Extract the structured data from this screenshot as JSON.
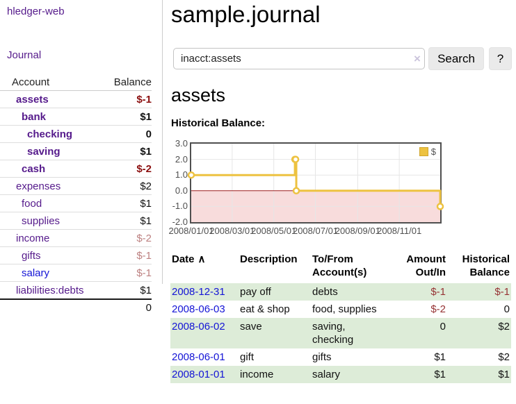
{
  "app": {
    "brand": "hledger-web"
  },
  "nav": {
    "journal": "Journal"
  },
  "colors": {
    "link_purple": "#551A8B",
    "link_blue": "#1414d6",
    "negative_strong": "#8b0f0f",
    "negative_soft": "#bd8181",
    "negative_table": "#963334",
    "row_green": "#ddecd8",
    "chart_line": "#EDC240",
    "chart_negative_fill": "#f8dcdc",
    "chart_zero_line": "#9b1c1c"
  },
  "sidebar": {
    "header": {
      "account": "Account",
      "balance": "Balance"
    },
    "rows": [
      {
        "name": "assets",
        "balance": "$-1",
        "indent": 1,
        "matched": true,
        "link": "visited"
      },
      {
        "name": "bank",
        "balance": "$1",
        "indent": 2,
        "matched": true,
        "link": "visited"
      },
      {
        "name": "checking",
        "balance": "0",
        "indent": 3,
        "matched": true,
        "link": "visited"
      },
      {
        "name": "saving",
        "balance": "$1",
        "indent": 3,
        "matched": true,
        "link": "visited"
      },
      {
        "name": "cash",
        "balance": "$-2",
        "indent": 2,
        "matched": true,
        "link": "visited"
      },
      {
        "name": "expenses",
        "balance": "$2",
        "indent": 1,
        "matched": false,
        "link": "visited"
      },
      {
        "name": "food",
        "balance": "$1",
        "indent": 2,
        "matched": false,
        "link": "visited"
      },
      {
        "name": "supplies",
        "balance": "$1",
        "indent": 2,
        "matched": false,
        "link": "visited"
      },
      {
        "name": "income",
        "balance": "$-2",
        "indent": 1,
        "matched": false,
        "link": "visited"
      },
      {
        "name": "gifts",
        "balance": "$-1",
        "indent": 2,
        "matched": false,
        "link": "visited"
      },
      {
        "name": "salary",
        "balance": "$-1",
        "indent": 2,
        "matched": false,
        "link": "new"
      },
      {
        "name": "liabilities:debts",
        "balance": "$1",
        "indent": 1,
        "matched": false,
        "link": "visited"
      }
    ],
    "total": "0"
  },
  "main": {
    "title": "sample.journal"
  },
  "search": {
    "query": "inacct:assets",
    "clear": "×",
    "search_button": "Search",
    "help_button": "?"
  },
  "account": {
    "heading": "assets",
    "section_label": "Historical Balance:"
  },
  "chart_data": {
    "type": "line",
    "step": true,
    "title": "Historical Balance",
    "series": [
      {
        "name": "$",
        "color": "#EDC240",
        "points": [
          [
            "2008-01-01",
            1
          ],
          [
            "2008-06-01",
            2
          ],
          [
            "2008-06-02",
            2
          ],
          [
            "2008-06-03",
            0
          ],
          [
            "2008-12-31",
            -1
          ]
        ]
      }
    ],
    "x_range": [
      "2008-01-01",
      "2008-12-31"
    ],
    "x_ticks": [
      {
        "label": "2008/01/01",
        "date": "2008-01-01"
      },
      {
        "label": "2008/03/01",
        "date": "2008-03-01"
      },
      {
        "label": "2008/05/01",
        "date": "2008-05-01"
      },
      {
        "label": "2008/07/01",
        "date": "2008-07-01"
      },
      {
        "label": "2008/09/01",
        "date": "2008-09-01"
      },
      {
        "label": "2008/11/01",
        "date": "2008-11-01"
      }
    ],
    "y_ticks": [
      "3.0",
      "2.0",
      "1.0",
      "0.0",
      "-1.0",
      "-2.0"
    ],
    "ylim": [
      -2,
      3
    ],
    "legend": {
      "label": "$",
      "position": "top-right"
    },
    "grid": true
  },
  "register": {
    "columns": [
      {
        "label": "Date",
        "sort": "∧"
      },
      {
        "label": "Description"
      },
      {
        "label": "To/From Account(s)"
      },
      {
        "label": "Amount Out/In",
        "numeric": true
      },
      {
        "label": "Historical Balance",
        "numeric": true
      }
    ],
    "rows": [
      {
        "date": "2008-12-31",
        "description": "pay off",
        "tofrom": "debts",
        "amount": "$-1",
        "balance": "$-1"
      },
      {
        "date": "2008-06-03",
        "description": "eat & shop",
        "tofrom": "food, supplies",
        "amount": "$-2",
        "balance": "0"
      },
      {
        "date": "2008-06-02",
        "description": "save",
        "tofrom": "saving, checking",
        "amount": "0",
        "balance": "$2"
      },
      {
        "date": "2008-06-01",
        "description": "gift",
        "tofrom": "gifts",
        "amount": "$1",
        "balance": "$2"
      },
      {
        "date": "2008-01-01",
        "description": "income",
        "tofrom": "salary",
        "amount": "$1",
        "balance": "$1"
      }
    ]
  }
}
